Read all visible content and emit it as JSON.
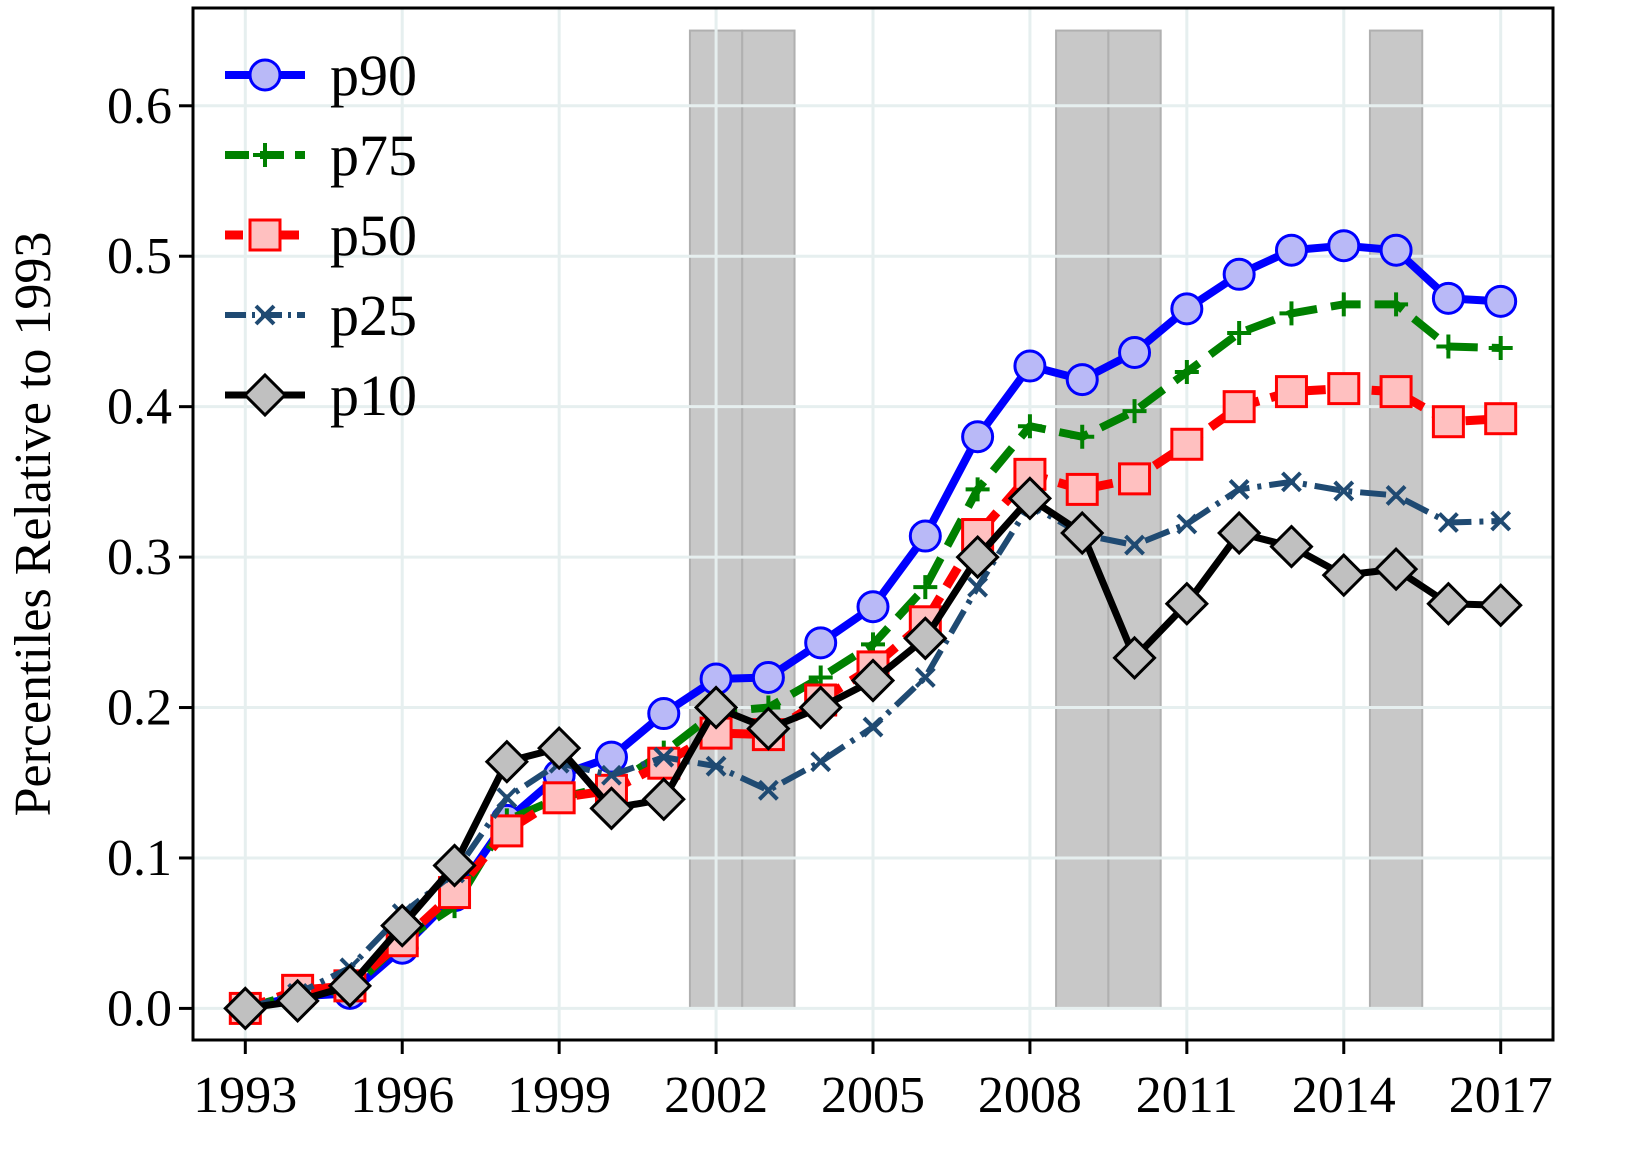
{
  "chart_data": {
    "type": "line",
    "title": "",
    "xlabel": "",
    "ylabel": "Percentiles Relative to 1993",
    "x": [
      1993,
      1994,
      1995,
      1996,
      1997,
      1998,
      1999,
      2000,
      2001,
      2002,
      2003,
      2004,
      2005,
      2006,
      2007,
      2008,
      2009,
      2010,
      2011,
      2012,
      2013,
      2014,
      2015,
      2016,
      2017
    ],
    "xlim": [
      1992,
      2018
    ],
    "ylim": [
      -0.021,
      0.665
    ],
    "xticks": [
      1993,
      1996,
      1999,
      2002,
      2005,
      2008,
      2011,
      2014,
      2017
    ],
    "xtick_labels": [
      "1993",
      "1996",
      "1999",
      "2002",
      "2005",
      "2008",
      "2011",
      "2014",
      "2017"
    ],
    "yticks": [
      0.0,
      0.1,
      0.2,
      0.3,
      0.4,
      0.5,
      0.6
    ],
    "ytick_labels": [
      "0.0",
      "0.1",
      "0.2",
      "0.3",
      "0.4",
      "0.5",
      "0.6"
    ],
    "grid": true,
    "legend_position": "top-left",
    "shaded_periods": [
      {
        "start": 2001.5,
        "end": 2002.5,
        "top": 0.65
      },
      {
        "start": 2002.5,
        "end": 2003.5,
        "top": 0.65
      },
      {
        "start": 2008.5,
        "end": 2009.5,
        "top": 0.65
      },
      {
        "start": 2009.5,
        "end": 2010.5,
        "top": 0.65
      },
      {
        "start": 2014.5,
        "end": 2015.5,
        "top": 0.65
      }
    ],
    "series": [
      {
        "name": "p90",
        "color": "#0000ff",
        "marker": "circle",
        "marker_fill": "#b9b9f7",
        "dash": "",
        "values": [
          0,
          0.008,
          0.01,
          0.04,
          0.075,
          0.125,
          0.155,
          0.167,
          0.196,
          0.219,
          0.22,
          0.243,
          0.267,
          0.314,
          0.38,
          0.427,
          0.418,
          0.436,
          0.465,
          0.488,
          0.504,
          0.507,
          0.504,
          0.472,
          0.47
        ]
      },
      {
        "name": "p75",
        "color": "#008000",
        "marker": "plus",
        "marker_fill": "#008000",
        "dash": "30,14",
        "values": [
          0,
          0.01,
          0.012,
          0.045,
          0.068,
          0.125,
          0.14,
          0.148,
          0.17,
          0.197,
          0.2,
          0.22,
          0.242,
          0.28,
          0.345,
          0.387,
          0.38,
          0.397,
          0.423,
          0.449,
          0.462,
          0.468,
          0.468,
          0.44,
          0.439
        ]
      },
      {
        "name": "p50",
        "color": "#ff0000",
        "marker": "square",
        "marker_fill": "#ffc0c0",
        "dash": "22,12",
        "values": [
          0,
          0.012,
          0.015,
          0.045,
          0.077,
          0.118,
          0.14,
          0.145,
          0.163,
          0.183,
          0.182,
          0.205,
          0.227,
          0.257,
          0.315,
          0.355,
          0.345,
          0.352,
          0.375,
          0.4,
          0.41,
          0.412,
          0.41,
          0.39,
          0.392
        ]
      },
      {
        "name": "p25",
        "color": "#1f4a72",
        "marker": "x",
        "marker_fill": "#1f4a72",
        "dash": "26,8,4,8",
        "values": [
          0,
          0.01,
          0.027,
          0.063,
          0.09,
          0.14,
          0.163,
          0.155,
          0.167,
          0.161,
          0.145,
          0.164,
          0.187,
          0.22,
          0.28,
          0.335,
          0.315,
          0.308,
          0.322,
          0.345,
          0.35,
          0.344,
          0.341,
          0.323,
          0.324
        ]
      },
      {
        "name": "p10",
        "color": "#000000",
        "marker": "diamond",
        "marker_fill": "#c0c0c0",
        "dash": "",
        "values": [
          0,
          0.005,
          0.015,
          0.055,
          0.095,
          0.164,
          0.173,
          0.133,
          0.139,
          0.2,
          0.186,
          0.2,
          0.218,
          0.246,
          0.3,
          0.339,
          0.316,
          0.233,
          0.269,
          0.316,
          0.307,
          0.288,
          0.292,
          0.269,
          0.268
        ]
      }
    ]
  }
}
